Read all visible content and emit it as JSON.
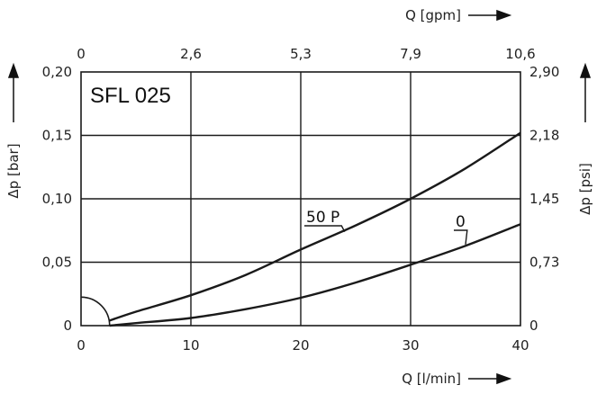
{
  "chart_data": {
    "type": "line",
    "title": "SFL 025",
    "xlabel": "Q [l/min]",
    "x2label": "Q [gpm]",
    "ylabel": "Δp [bar]",
    "y2label": "Δp [psi]",
    "xlim": [
      0,
      40
    ],
    "ylim": [
      0,
      0.2
    ],
    "grid": true,
    "x_ticks": [
      "0",
      "10",
      "20",
      "30",
      "40"
    ],
    "x2_ticks": [
      "0",
      "2,6",
      "5,3",
      "7,9",
      "10,6"
    ],
    "y_ticks": [
      "0",
      "0,05",
      "0,10",
      "0,15",
      "0,20"
    ],
    "y2_ticks": [
      "0",
      "0,73",
      "1,45",
      "2,18",
      "2,90"
    ],
    "series": [
      {
        "name": "50 P",
        "x": [
          2.6,
          5,
          10,
          15,
          20,
          25,
          30,
          35,
          40
        ],
        "y": [
          0.004,
          0.011,
          0.024,
          0.04,
          0.06,
          0.079,
          0.1,
          0.124,
          0.152
        ]
      },
      {
        "name": "0",
        "x": [
          2.6,
          5,
          10,
          15,
          20,
          25,
          30,
          35,
          40
        ],
        "y": [
          0.0,
          0.002,
          0.006,
          0.013,
          0.022,
          0.034,
          0.048,
          0.063,
          0.08
        ]
      }
    ],
    "colors": {
      "line": "#1a1a1a",
      "grid": "#1a1a1a",
      "text": "#222222"
    }
  }
}
